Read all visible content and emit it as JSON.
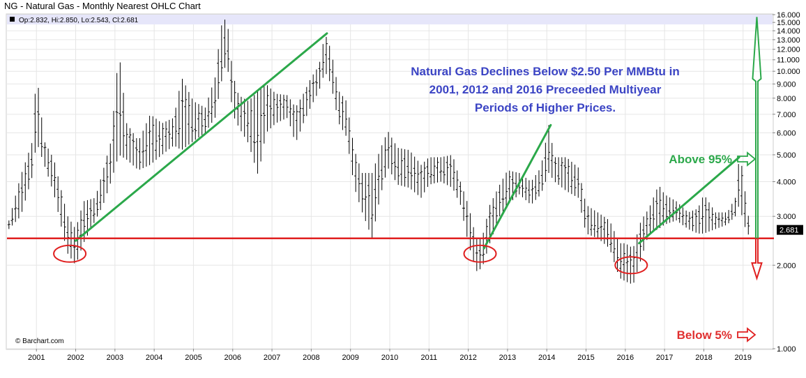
{
  "title": "NG - Natural Gas - Monthly Nearest OHLC Chart",
  "ohlc_readout": "Op:2.832, Hi:2.850, Lo:2.543, Cl:2.681",
  "watermark": "© Barchart.com",
  "last_price": "2.681",
  "colors": {
    "price_bars": "#000000",
    "trend": "#2ba84a",
    "threshold": "#e02020",
    "annotation_text": "#3b44c4",
    "header_band": "#e6e6fa",
    "last_price_bg": "#000000",
    "grid": "#e6e6e6"
  },
  "annotations": {
    "main_lines": [
      "Natural Gas Declines Below $2.50 Per MMBtu in",
      "2001, 2012 and 2016 Preceeded Multiyear",
      "Periods of Higher Prices."
    ],
    "above": "Above 95%",
    "below": "Below 5%"
  },
  "chart_data": {
    "type": "ohlc",
    "title": "NG - Natural Gas - Monthly Nearest OHLC Chart",
    "y_scale": "log",
    "ylim": [
      1.0,
      16.0
    ],
    "y_ticks": [
      1.0,
      2.0,
      3.0,
      4.0,
      5.0,
      6.0,
      7.0,
      8.0,
      9.0,
      10.0,
      11.0,
      12.0,
      13.0,
      14.0,
      15.0,
      16.0
    ],
    "y_tick_labels": [
      "1.000",
      "2.000",
      "3.000",
      "4.000",
      "5.000",
      "6.000",
      "7.000",
      "8.000",
      "9.000",
      "10.000",
      "11.000",
      "12.000",
      "13.000",
      "14.000",
      "15.000",
      "16.000"
    ],
    "x_ticks": [
      2001,
      2002,
      2003,
      2004,
      2005,
      2006,
      2007,
      2008,
      2009,
      2010,
      2011,
      2012,
      2013,
      2014,
      2015,
      2016,
      2017,
      2018,
      2019
    ],
    "x_tick_labels": [
      "2001",
      "2002",
      "2003",
      "2004",
      "2005",
      "2006",
      "2007",
      "2008",
      "2009",
      "2010",
      "2011",
      "2012",
      "2013",
      "2014",
      "2015",
      "2016",
      "2017",
      "2018",
      "2019"
    ],
    "xlim": [
      2000.25,
      2019.75
    ],
    "grid": true,
    "last_bar": {
      "open": 2.832,
      "high": 2.85,
      "low": 2.543,
      "close": 2.681
    },
    "anchors": [
      [
        2000.3,
        2.9,
        2.7
      ],
      [
        2000.6,
        4.2,
        3.0
      ],
      [
        2000.9,
        5.6,
        4.2
      ],
      [
        2001.0,
        10.1,
        5.6
      ],
      [
        2001.2,
        5.6,
        4.6
      ],
      [
        2001.45,
        4.8,
        3.6
      ],
      [
        2001.7,
        3.4,
        2.5
      ],
      [
        2001.8,
        3.0,
        2.2
      ],
      [
        2002.0,
        2.7,
        2.0
      ],
      [
        2002.2,
        3.4,
        2.4
      ],
      [
        2002.5,
        3.5,
        2.9
      ],
      [
        2002.7,
        4.4,
        3.3
      ],
      [
        2002.9,
        5.6,
        4.0
      ],
      [
        2003.1,
        11.9,
        5.0
      ],
      [
        2003.3,
        6.5,
        4.8
      ],
      [
        2003.6,
        5.6,
        4.4
      ],
      [
        2003.9,
        7.0,
        4.6
      ],
      [
        2004.2,
        6.5,
        5.0
      ],
      [
        2004.5,
        6.8,
        5.4
      ],
      [
        2004.7,
        9.5,
        5.2
      ],
      [
        2005.0,
        7.8,
        5.6
      ],
      [
        2005.3,
        7.4,
        6.0
      ],
      [
        2005.55,
        9.5,
        6.8
      ],
      [
        2005.7,
        14.5,
        9.0
      ],
      [
        2005.85,
        15.8,
        11.0
      ],
      [
        2006.0,
        9.8,
        7.0
      ],
      [
        2006.15,
        8.2,
        6.3
      ],
      [
        2006.4,
        7.8,
        5.5
      ],
      [
        2006.65,
        8.5,
        4.2
      ],
      [
        2006.85,
        9.0,
        6.0
      ],
      [
        2007.1,
        8.3,
        6.5
      ],
      [
        2007.4,
        8.2,
        6.8
      ],
      [
        2007.6,
        7.4,
        5.5
      ],
      [
        2007.8,
        8.3,
        6.5
      ],
      [
        2008.0,
        9.5,
        7.5
      ],
      [
        2008.2,
        10.5,
        8.5
      ],
      [
        2008.35,
        13.7,
        10.0
      ],
      [
        2008.5,
        12.0,
        9.0
      ],
      [
        2008.7,
        8.5,
        6.5
      ],
      [
        2008.9,
        7.8,
        5.8
      ],
      [
        2009.1,
        5.2,
        3.8
      ],
      [
        2009.3,
        4.3,
        3.1
      ],
      [
        2009.55,
        4.3,
        2.5
      ],
      [
        2009.75,
        5.2,
        3.5
      ],
      [
        2009.95,
        6.1,
        4.5
      ],
      [
        2010.2,
        5.3,
        3.9
      ],
      [
        2010.5,
        5.2,
        3.8
      ],
      [
        2010.8,
        4.6,
        3.5
      ],
      [
        2011.0,
        4.9,
        3.9
      ],
      [
        2011.3,
        4.9,
        4.0
      ],
      [
        2011.6,
        5.0,
        3.8
      ],
      [
        2011.8,
        4.0,
        3.3
      ],
      [
        2012.0,
        3.3,
        2.4
      ],
      [
        2012.2,
        2.5,
        1.9
      ],
      [
        2012.35,
        2.5,
        1.95
      ],
      [
        2012.55,
        3.3,
        2.4
      ],
      [
        2012.8,
        3.9,
        3.0
      ],
      [
        2013.0,
        4.4,
        3.3
      ],
      [
        2013.3,
        4.3,
        3.6
      ],
      [
        2013.6,
        4.0,
        3.3
      ],
      [
        2013.85,
        4.5,
        3.6
      ],
      [
        2014.05,
        6.4,
        4.3
      ],
      [
        2014.2,
        4.9,
        4.0
      ],
      [
        2014.5,
        4.9,
        3.7
      ],
      [
        2014.8,
        4.5,
        3.5
      ],
      [
        2015.0,
        3.3,
        2.6
      ],
      [
        2015.3,
        3.1,
        2.5
      ],
      [
        2015.6,
        2.9,
        2.3
      ],
      [
        2015.85,
        2.4,
        1.8
      ],
      [
        2016.0,
        2.4,
        1.75
      ],
      [
        2016.2,
        2.3,
        1.7
      ],
      [
        2016.4,
        2.9,
        2.1
      ],
      [
        2016.6,
        3.2,
        2.6
      ],
      [
        2016.85,
        3.9,
        2.7
      ],
      [
        2017.0,
        3.6,
        2.8
      ],
      [
        2017.3,
        3.4,
        2.9
      ],
      [
        2017.6,
        3.1,
        2.7
      ],
      [
        2017.85,
        3.2,
        2.6
      ],
      [
        2018.0,
        3.6,
        2.6
      ],
      [
        2018.3,
        3.1,
        2.7
      ],
      [
        2018.6,
        3.1,
        2.8
      ],
      [
        2018.8,
        3.5,
        3.0
      ],
      [
        2018.9,
        4.9,
        3.3
      ],
      [
        2019.0,
        4.4,
        2.9
      ],
      [
        2019.1,
        3.1,
        2.6
      ],
      [
        2019.2,
        2.85,
        2.54
      ]
    ],
    "trend_lines": [
      {
        "from": [
          2002.0,
          2.45
        ],
        "to": [
          2008.4,
          13.7
        ]
      },
      {
        "from": [
          2012.4,
          2.3
        ],
        "to": [
          2014.1,
          6.4
        ]
      },
      {
        "from": [
          2016.35,
          2.4
        ],
        "to": [
          2018.9,
          4.9
        ]
      }
    ],
    "threshold_line": 2.5,
    "circled_lows": [
      {
        "x": 2001.85,
        "y": 2.2
      },
      {
        "x": 2012.3,
        "y": 2.2
      },
      {
        "x": 2016.15,
        "y": 2.0
      }
    ],
    "projection": {
      "x": 2019.35,
      "upper": 15.7,
      "lower": 1.9,
      "base": 2.5
    }
  }
}
